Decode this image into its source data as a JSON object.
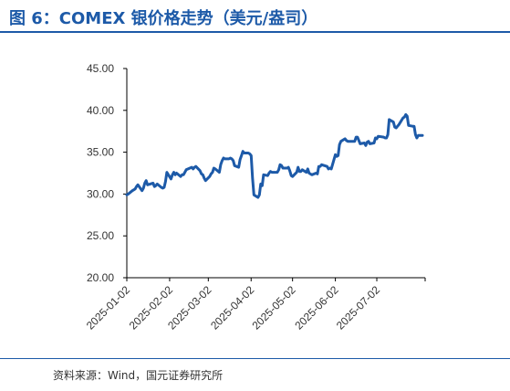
{
  "header": {
    "title": "图 6：COMEX 银价格走势（美元/盎司）"
  },
  "footer": {
    "source": "资料来源：Wind，国元证券研究所"
  },
  "colors": {
    "line": "#1d5aa8",
    "title": "#1d5aa8",
    "axis": "#000000"
  },
  "chart_data": {
    "type": "line",
    "title": "",
    "xlabel": "",
    "ylabel": "",
    "ylim": [
      20,
      45
    ],
    "yticks": [
      "20.00",
      "25.00",
      "30.00",
      "35.00",
      "40.00",
      "45.00"
    ],
    "xticks": [
      "2025-01-02",
      "2025-02-02",
      "2025-03-02",
      "2025-04-02",
      "2025-05-02",
      "2025-06-02",
      "2025-07-02"
    ],
    "xlim": [
      "2025-01-02",
      "2025-08-06"
    ],
    "grid": false,
    "series": [
      {
        "values": [
          [
            "2025-01-02",
            29.9
          ],
          [
            "2025-01-03",
            30.0
          ],
          [
            "2025-01-06",
            30.4
          ],
          [
            "2025-01-07",
            30.5
          ],
          [
            "2025-01-08",
            30.6
          ],
          [
            "2025-01-09",
            30.9
          ],
          [
            "2025-01-10",
            31.1
          ],
          [
            "2025-01-13",
            30.4
          ],
          [
            "2025-01-14",
            30.7
          ],
          [
            "2025-01-15",
            31.3
          ],
          [
            "2025-01-16",
            31.6
          ],
          [
            "2025-01-17",
            31.1
          ],
          [
            "2025-01-21",
            31.3
          ],
          [
            "2025-01-22",
            30.9
          ],
          [
            "2025-01-23",
            31.0
          ],
          [
            "2025-01-24",
            31.2
          ],
          [
            "2025-01-27",
            30.8
          ],
          [
            "2025-01-28",
            30.7
          ],
          [
            "2025-01-29",
            30.8
          ],
          [
            "2025-01-30",
            31.5
          ],
          [
            "2025-01-31",
            32.6
          ],
          [
            "2025-02-03",
            31.8
          ],
          [
            "2025-02-04",
            32.3
          ],
          [
            "2025-02-05",
            32.6
          ],
          [
            "2025-02-06",
            32.3
          ],
          [
            "2025-02-07",
            32.5
          ],
          [
            "2025-02-10",
            32.1
          ],
          [
            "2025-02-11",
            32.3
          ],
          [
            "2025-02-12",
            32.3
          ],
          [
            "2025-02-13",
            32.6
          ],
          [
            "2025-02-14",
            32.9
          ],
          [
            "2025-02-18",
            33.2
          ],
          [
            "2025-02-19",
            33.0
          ],
          [
            "2025-02-20",
            33.2
          ],
          [
            "2025-02-21",
            33.3
          ],
          [
            "2025-02-24",
            32.8
          ],
          [
            "2025-02-25",
            32.4
          ],
          [
            "2025-02-26",
            32.3
          ],
          [
            "2025-02-27",
            31.9
          ],
          [
            "2025-02-28",
            31.6
          ],
          [
            "2025-03-03",
            32.1
          ],
          [
            "2025-03-04",
            32.4
          ],
          [
            "2025-03-05",
            32.6
          ],
          [
            "2025-03-06",
            33.1
          ],
          [
            "2025-03-07",
            33.0
          ],
          [
            "2025-03-10",
            32.6
          ],
          [
            "2025-03-11",
            33.5
          ],
          [
            "2025-03-12",
            34.0
          ],
          [
            "2025-03-13",
            34.3
          ],
          [
            "2025-03-14",
            34.2
          ],
          [
            "2025-03-17",
            34.2
          ],
          [
            "2025-03-18",
            34.3
          ],
          [
            "2025-03-19",
            34.2
          ],
          [
            "2025-03-20",
            34.0
          ],
          [
            "2025-03-21",
            33.4
          ],
          [
            "2025-03-24",
            33.2
          ],
          [
            "2025-03-25",
            34.1
          ],
          [
            "2025-03-26",
            34.6
          ],
          [
            "2025-03-27",
            35.1
          ],
          [
            "2025-03-28",
            34.9
          ],
          [
            "2025-03-31",
            34.9
          ],
          [
            "2025-04-01",
            34.8
          ],
          [
            "2025-04-02",
            34.6
          ],
          [
            "2025-04-03",
            31.9
          ],
          [
            "2025-04-04",
            29.9
          ],
          [
            "2025-04-07",
            29.6
          ],
          [
            "2025-04-08",
            29.9
          ],
          [
            "2025-04-09",
            31.2
          ],
          [
            "2025-04-10",
            31.0
          ],
          [
            "2025-04-11",
            32.3
          ],
          [
            "2025-04-14",
            32.2
          ],
          [
            "2025-04-15",
            32.5
          ],
          [
            "2025-04-16",
            32.7
          ],
          [
            "2025-04-17",
            32.6
          ],
          [
            "2025-04-21",
            32.6
          ],
          [
            "2025-04-22",
            32.9
          ],
          [
            "2025-04-23",
            33.5
          ],
          [
            "2025-04-24",
            33.4
          ],
          [
            "2025-04-25",
            33.1
          ],
          [
            "2025-04-28",
            33.1
          ],
          [
            "2025-04-29",
            33.2
          ],
          [
            "2025-04-30",
            32.8
          ],
          [
            "2025-05-01",
            32.2
          ],
          [
            "2025-05-02",
            32.1
          ],
          [
            "2025-05-05",
            32.6
          ],
          [
            "2025-05-06",
            33.2
          ],
          [
            "2025-05-07",
            32.7
          ],
          [
            "2025-05-08",
            32.7
          ],
          [
            "2025-05-09",
            32.9
          ],
          [
            "2025-05-12",
            32.6
          ],
          [
            "2025-05-13",
            33.0
          ],
          [
            "2025-05-14",
            32.5
          ],
          [
            "2025-05-15",
            32.4
          ],
          [
            "2025-05-16",
            32.3
          ],
          [
            "2025-05-19",
            32.5
          ],
          [
            "2025-05-20",
            32.4
          ],
          [
            "2025-05-21",
            33.3
          ],
          [
            "2025-05-22",
            33.3
          ],
          [
            "2025-05-23",
            33.5
          ],
          [
            "2025-05-27",
            33.3
          ],
          [
            "2025-05-28",
            33.0
          ],
          [
            "2025-05-29",
            33.1
          ],
          [
            "2025-05-30",
            33.0
          ],
          [
            "2025-06-02",
            34.7
          ],
          [
            "2025-06-03",
            34.5
          ],
          [
            "2025-06-04",
            34.6
          ],
          [
            "2025-06-05",
            35.9
          ],
          [
            "2025-06-06",
            36.3
          ],
          [
            "2025-06-09",
            36.6
          ],
          [
            "2025-06-10",
            36.4
          ],
          [
            "2025-06-11",
            36.3
          ],
          [
            "2025-06-12",
            36.3
          ],
          [
            "2025-06-13",
            36.3
          ],
          [
            "2025-06-16",
            36.3
          ],
          [
            "2025-06-17",
            36.8
          ],
          [
            "2025-06-18",
            36.8
          ],
          [
            "2025-06-20",
            36.0
          ],
          [
            "2025-06-23",
            36.1
          ],
          [
            "2025-06-24",
            35.8
          ],
          [
            "2025-06-25",
            36.2
          ],
          [
            "2025-06-26",
            36.3
          ],
          [
            "2025-06-27",
            36.0
          ],
          [
            "2025-06-30",
            36.1
          ],
          [
            "2025-07-01",
            36.7
          ],
          [
            "2025-07-02",
            36.6
          ],
          [
            "2025-07-03",
            36.9
          ],
          [
            "2025-07-07",
            36.8
          ],
          [
            "2025-07-08",
            36.7
          ],
          [
            "2025-07-09",
            36.7
          ],
          [
            "2025-07-10",
            37.1
          ],
          [
            "2025-07-11",
            38.9
          ],
          [
            "2025-07-14",
            38.6
          ],
          [
            "2025-07-15",
            38.0
          ],
          [
            "2025-07-16",
            37.9
          ],
          [
            "2025-07-17",
            38.1
          ],
          [
            "2025-07-18",
            38.3
          ],
          [
            "2025-07-21",
            39.1
          ],
          [
            "2025-07-22",
            39.2
          ],
          [
            "2025-07-23",
            39.5
          ],
          [
            "2025-07-24",
            39.3
          ],
          [
            "2025-07-25",
            38.2
          ],
          [
            "2025-07-28",
            38.1
          ],
          [
            "2025-07-29",
            38.1
          ],
          [
            "2025-07-30",
            37.1
          ],
          [
            "2025-07-31",
            36.7
          ],
          [
            "2025-08-01",
            37.0
          ],
          [
            "2025-08-04",
            37.0
          ]
        ]
      }
    ]
  }
}
